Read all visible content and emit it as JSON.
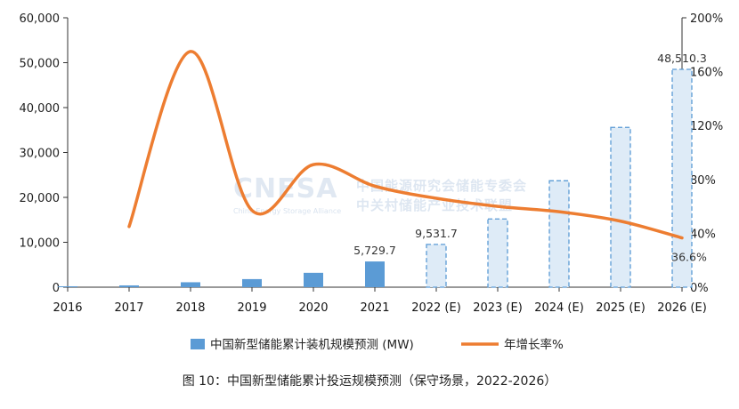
{
  "chart_data": {
    "type": "bar+line",
    "categories": [
      "2016",
      "2017",
      "2018",
      "2019",
      "2020",
      "2021",
      "2022 (E)",
      "2023 (E)",
      "2024 (E)",
      "2025 (E)",
      "2026 (E)"
    ],
    "series": [
      {
        "name": "中国新型储能累计装机规模预测 (MW)",
        "type": "bar",
        "axis": "left",
        "values": [
          200,
          400,
          1100,
          1800,
          3200,
          5729.7,
          9531.7,
          15200,
          23700,
          35600,
          48510.3
        ],
        "estimated": [
          false,
          false,
          false,
          false,
          false,
          false,
          true,
          true,
          true,
          true,
          true
        ],
        "color_actual": "#5b9bd5",
        "color_estimate": "#deebf7"
      },
      {
        "name": "年增长率%",
        "type": "line",
        "axis": "right",
        "x": [
          1,
          2,
          3,
          4,
          5,
          6,
          7,
          8,
          9,
          10
        ],
        "values": [
          45,
          175,
          57,
          91,
          75,
          66,
          60,
          56,
          49,
          36.6
        ],
        "color": "#ed7d31"
      }
    ],
    "y_left": {
      "min": 0,
      "max": 60000,
      "ticks": [
        "0",
        "10,000",
        "20,000",
        "30,000",
        "40,000",
        "50,000",
        "60,000"
      ]
    },
    "y_right": {
      "min": 0,
      "max": 200,
      "ticks": [
        "0%",
        "40%",
        "80%",
        "120%",
        "160%",
        "200%"
      ]
    },
    "data_labels": [
      {
        "index": 5,
        "text": "5,729.7"
      },
      {
        "index": 6,
        "text": "9,531.7"
      },
      {
        "index": 10,
        "text": "48,510.3"
      }
    ],
    "line_label": {
      "index": 10,
      "text": "36.6%"
    },
    "legend_position": "bottom",
    "grid": false
  },
  "watermark": {
    "brand": "CNESA",
    "cn_line1": "中国能源研究会储能专委会",
    "cn_line2": "中关村储能产业技术联盟",
    "en": "China Energy Storage Alliance"
  },
  "caption": "图 10：中国新型储能累计投运规模预测（保守场景，2022-2026）"
}
